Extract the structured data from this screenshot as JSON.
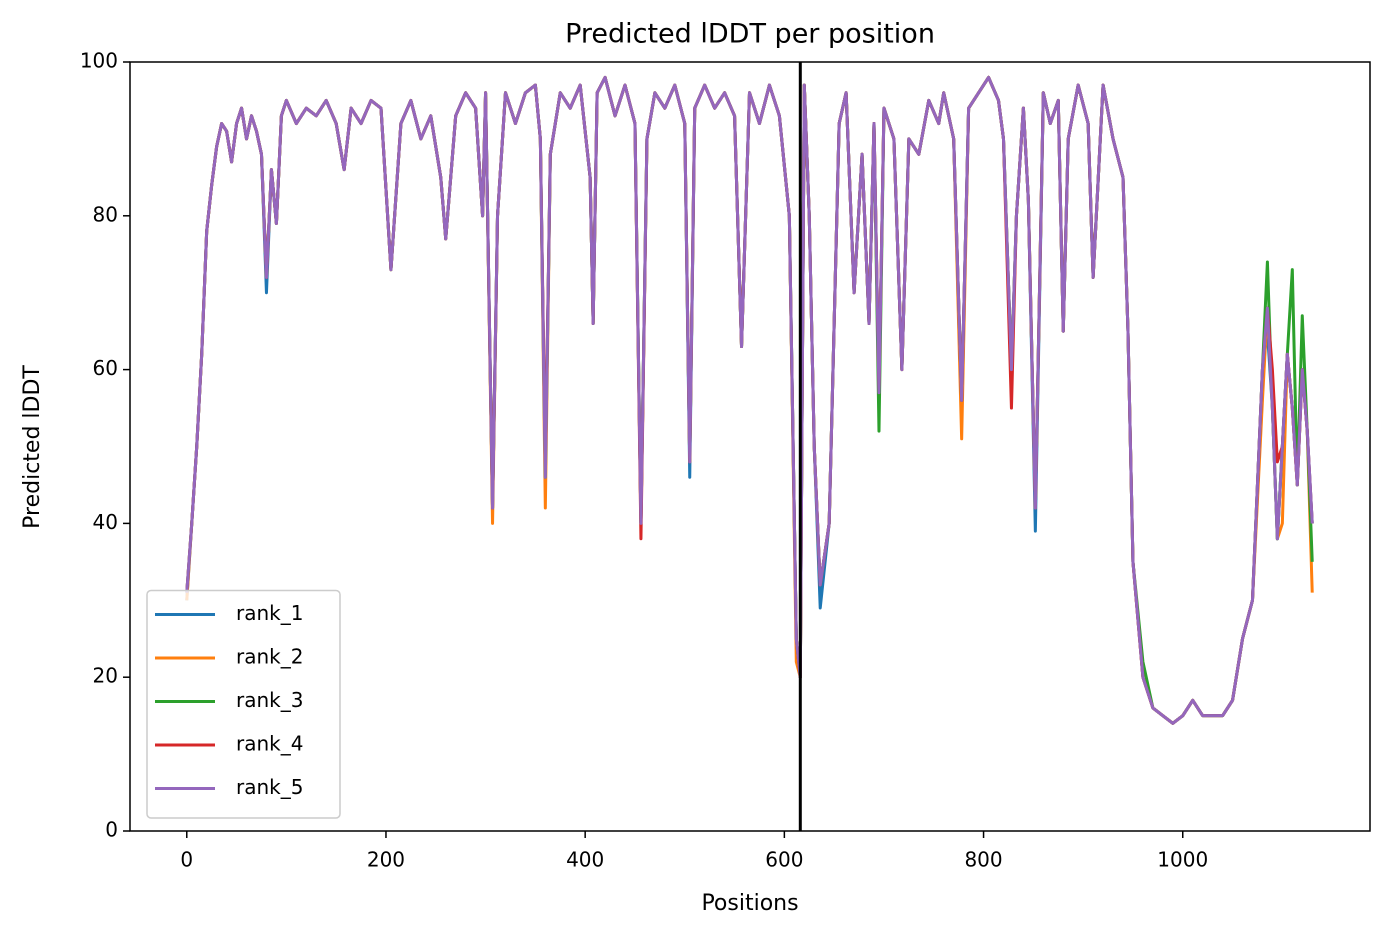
{
  "chart_data": {
    "type": "line",
    "title": "Predicted lDDT per position",
    "x_label": "Positions",
    "y_label": "Predicted lDDT",
    "x": [
      0,
      5,
      10,
      15,
      20,
      25,
      30,
      35,
      40,
      45,
      50,
      55,
      60,
      65,
      70,
      75,
      80,
      85,
      90,
      95,
      100,
      110,
      120,
      130,
      140,
      150,
      158,
      165,
      175,
      185,
      195,
      205,
      215,
      225,
      235,
      245,
      255,
      260,
      270,
      280,
      290,
      297,
      300,
      307,
      312,
      320,
      330,
      340,
      350,
      355,
      360,
      365,
      375,
      385,
      395,
      405,
      408,
      412,
      420,
      430,
      440,
      450,
      456,
      462,
      470,
      480,
      490,
      500,
      505,
      510,
      520,
      530,
      540,
      550,
      557,
      565,
      575,
      585,
      595,
      605,
      612,
      616,
      620,
      625,
      630,
      636,
      645,
      655,
      662,
      670,
      678,
      685,
      690,
      695,
      700,
      710,
      718,
      725,
      735,
      745,
      755,
      760,
      770,
      778,
      785,
      795,
      805,
      815,
      820,
      828,
      833,
      840,
      845,
      852,
      860,
      867,
      875,
      880,
      885,
      895,
      905,
      910,
      920,
      930,
      940,
      945,
      950,
      960,
      970,
      980,
      990,
      1000,
      1010,
      1020,
      1030,
      1040,
      1050,
      1060,
      1070,
      1080,
      1085,
      1090,
      1095,
      1100,
      1105,
      1110,
      1115,
      1120,
      1125,
      1130
    ],
    "series": [
      {
        "name": "rank_1",
        "color": "#1f77b4",
        "values": [
          30,
          40,
          50,
          62,
          78,
          84,
          89,
          92,
          91,
          87,
          92,
          94,
          90,
          93,
          91,
          88,
          70,
          86,
          79,
          93,
          95,
          92,
          94,
          93,
          95,
          92,
          86,
          94,
          92,
          95,
          94,
          73,
          92,
          95,
          90,
          93,
          85,
          77,
          93,
          96,
          94,
          80,
          96,
          42,
          80,
          96,
          92,
          96,
          97,
          90,
          46,
          88,
          96,
          94,
          97,
          85,
          66,
          96,
          98,
          93,
          97,
          92,
          40,
          90,
          96,
          94,
          97,
          92,
          46,
          94,
          97,
          94,
          96,
          93,
          63,
          96,
          92,
          97,
          93,
          80,
          25,
          20,
          97,
          80,
          50,
          29,
          40,
          92,
          96,
          70,
          88,
          66,
          92,
          57,
          94,
          90,
          60,
          90,
          88,
          95,
          92,
          96,
          90,
          56,
          94,
          96,
          98,
          95,
          90,
          60,
          80,
          94,
          82,
          39,
          96,
          92,
          95,
          65,
          90,
          97,
          92,
          72,
          97,
          90,
          85,
          65,
          35,
          20,
          16,
          15,
          14,
          15,
          17,
          15,
          15,
          15,
          17,
          25,
          30,
          60,
          65,
          55,
          38,
          50,
          62,
          55,
          45,
          60,
          52,
          40
        ]
      },
      {
        "name": "rank_2",
        "color": "#ff7f0e",
        "values": [
          30,
          40,
          50,
          62,
          78,
          84,
          89,
          92,
          91,
          87,
          92,
          94,
          90,
          93,
          91,
          88,
          72,
          86,
          79,
          93,
          95,
          92,
          94,
          93,
          95,
          92,
          86,
          94,
          92,
          95,
          94,
          73,
          92,
          95,
          90,
          93,
          85,
          77,
          93,
          96,
          94,
          80,
          96,
          40,
          80,
          96,
          92,
          96,
          97,
          90,
          42,
          88,
          96,
          94,
          97,
          85,
          66,
          96,
          98,
          93,
          97,
          92,
          40,
          90,
          96,
          94,
          97,
          92,
          48,
          94,
          97,
          94,
          96,
          93,
          63,
          96,
          92,
          97,
          93,
          80,
          22,
          20,
          97,
          80,
          50,
          32,
          40,
          92,
          96,
          70,
          88,
          66,
          92,
          57,
          94,
          90,
          60,
          90,
          88,
          95,
          92,
          96,
          90,
          51,
          94,
          96,
          98,
          95,
          90,
          60,
          80,
          94,
          82,
          42,
          96,
          92,
          95,
          65,
          90,
          97,
          92,
          72,
          97,
          90,
          85,
          65,
          35,
          20,
          16,
          15,
          14,
          15,
          17,
          15,
          15,
          15,
          17,
          25,
          30,
          56,
          68,
          55,
          38,
          40,
          62,
          55,
          45,
          60,
          52,
          31
        ]
      },
      {
        "name": "rank_3",
        "color": "#2ca02c",
        "values": [
          31,
          40,
          50,
          62,
          78,
          84,
          89,
          92,
          91,
          87,
          92,
          94,
          90,
          93,
          91,
          88,
          72,
          86,
          79,
          93,
          95,
          92,
          94,
          93,
          95,
          92,
          86,
          94,
          92,
          95,
          94,
          73,
          92,
          95,
          90,
          93,
          85,
          77,
          93,
          96,
          94,
          80,
          96,
          42,
          80,
          96,
          92,
          96,
          97,
          90,
          46,
          88,
          96,
          94,
          97,
          85,
          66,
          96,
          98,
          93,
          97,
          92,
          40,
          90,
          96,
          94,
          97,
          92,
          48,
          94,
          97,
          94,
          96,
          93,
          63,
          96,
          92,
          97,
          93,
          80,
          25,
          20,
          97,
          80,
          50,
          32,
          40,
          92,
          96,
          70,
          88,
          66,
          92,
          52,
          94,
          90,
          60,
          90,
          88,
          95,
          92,
          96,
          90,
          56,
          94,
          96,
          98,
          95,
          90,
          60,
          80,
          94,
          82,
          42,
          96,
          92,
          95,
          65,
          90,
          97,
          92,
          72,
          97,
          90,
          85,
          65,
          35,
          22,
          16,
          15,
          14,
          15,
          17,
          15,
          15,
          15,
          17,
          25,
          30,
          60,
          74,
          55,
          38,
          50,
          62,
          73,
          45,
          67,
          52,
          35
        ]
      },
      {
        "name": "rank_4",
        "color": "#d62728",
        "values": [
          31,
          40,
          50,
          62,
          78,
          84,
          89,
          92,
          91,
          87,
          92,
          94,
          90,
          93,
          91,
          88,
          72,
          86,
          79,
          93,
          95,
          92,
          94,
          93,
          95,
          92,
          86,
          94,
          92,
          95,
          94,
          73,
          92,
          95,
          90,
          93,
          85,
          77,
          93,
          96,
          94,
          80,
          96,
          42,
          80,
          96,
          92,
          96,
          97,
          90,
          48,
          88,
          96,
          94,
          97,
          85,
          66,
          96,
          98,
          93,
          97,
          92,
          38,
          90,
          96,
          94,
          97,
          92,
          48,
          94,
          97,
          94,
          96,
          93,
          63,
          96,
          92,
          97,
          93,
          80,
          25,
          20,
          97,
          80,
          50,
          32,
          40,
          92,
          96,
          70,
          88,
          66,
          92,
          57,
          94,
          90,
          60,
          90,
          88,
          95,
          92,
          96,
          90,
          56,
          94,
          96,
          98,
          95,
          90,
          55,
          80,
          94,
          82,
          42,
          96,
          92,
          95,
          65,
          90,
          97,
          92,
          72,
          97,
          90,
          85,
          65,
          35,
          20,
          16,
          15,
          14,
          15,
          17,
          15,
          15,
          15,
          17,
          25,
          30,
          60,
          68,
          60,
          48,
          50,
          62,
          55,
          45,
          60,
          52,
          40
        ]
      },
      {
        "name": "rank_5",
        "color": "#9467bd",
        "values": [
          31,
          40,
          50,
          62,
          78,
          84,
          89,
          92,
          91,
          87,
          92,
          94,
          90,
          93,
          91,
          88,
          72,
          86,
          79,
          93,
          95,
          92,
          94,
          93,
          95,
          92,
          86,
          94,
          92,
          95,
          94,
          73,
          92,
          95,
          90,
          93,
          85,
          77,
          93,
          96,
          94,
          80,
          96,
          42,
          80,
          96,
          92,
          96,
          97,
          90,
          46,
          88,
          96,
          94,
          97,
          85,
          66,
          96,
          98,
          93,
          97,
          92,
          40,
          90,
          96,
          94,
          97,
          92,
          48,
          94,
          97,
          94,
          96,
          93,
          63,
          96,
          92,
          97,
          93,
          80,
          25,
          20,
          97,
          80,
          50,
          32,
          40,
          92,
          96,
          70,
          88,
          66,
          92,
          57,
          94,
          90,
          60,
          90,
          88,
          95,
          92,
          96,
          90,
          56,
          94,
          96,
          98,
          95,
          90,
          60,
          80,
          94,
          82,
          42,
          96,
          92,
          95,
          65,
          90,
          97,
          92,
          72,
          97,
          90,
          85,
          65,
          35,
          20,
          16,
          15,
          14,
          15,
          17,
          15,
          15,
          15,
          17,
          25,
          30,
          60,
          68,
          55,
          38,
          50,
          62,
          55,
          45,
          60,
          52,
          40
        ]
      }
    ],
    "vline": 616,
    "vline_color": "#000000",
    "xlim": [
      -57,
      1188
    ],
    "xticks": [
      0,
      200,
      400,
      600,
      800,
      1000
    ],
    "ylim": [
      0,
      100
    ],
    "yticks": [
      0,
      20,
      40,
      60,
      80,
      100
    ],
    "grid": false,
    "legend": "lower left"
  }
}
